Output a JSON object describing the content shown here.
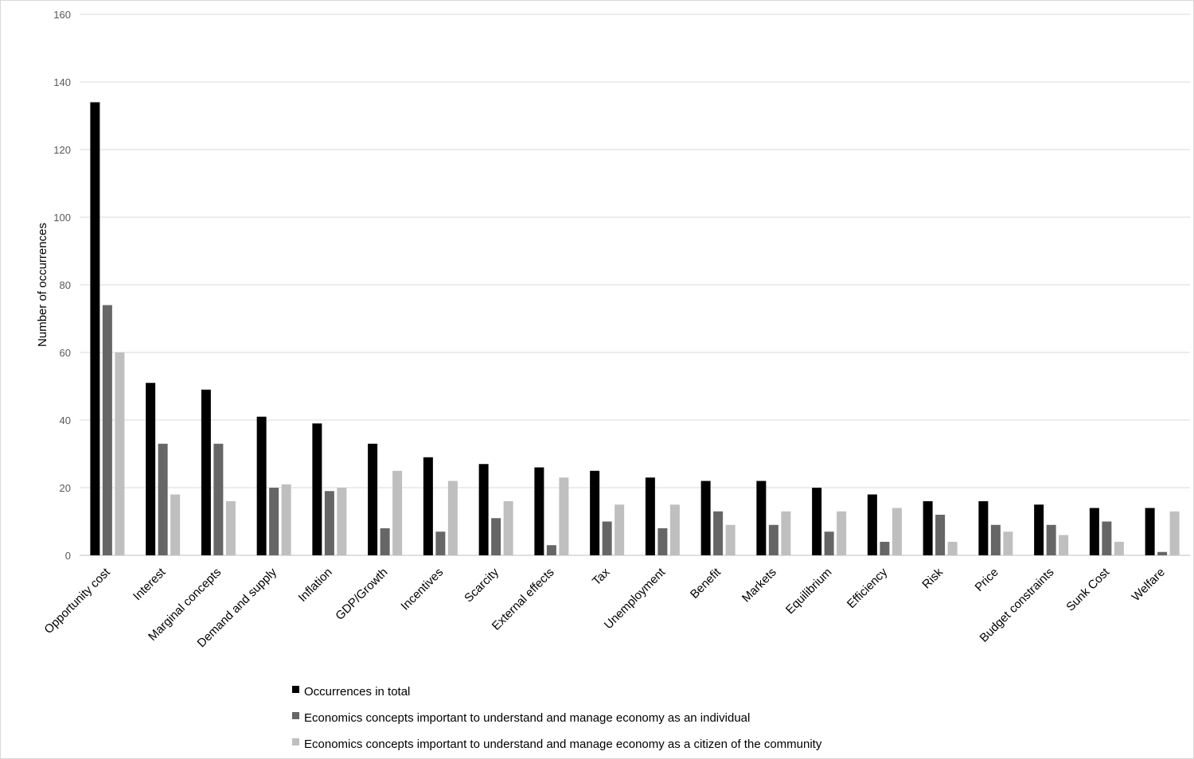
{
  "chart_data": {
    "type": "bar",
    "title": "",
    "xlabel": "",
    "ylabel": "Number of occurrences",
    "ylim": [
      0,
      160
    ],
    "yticks": [
      0,
      20,
      40,
      60,
      80,
      100,
      120,
      140,
      160
    ],
    "grid": true,
    "legend_position": "bottom",
    "categories": [
      "Opportunity cost",
      "Interest",
      "Marginal concepts",
      "Demand and supply",
      "Inflation",
      "GDP/Growth",
      "Incentives",
      "Scarcity",
      "External effects",
      "Tax",
      "Unemployment",
      "Benefit",
      "Markets",
      "Equilibrium",
      "Efficiency",
      "Risk",
      "Price",
      "Budget constraints",
      "Sunk Cost",
      "Welfare"
    ],
    "series": [
      {
        "name": "Occurrences in total",
        "color": "#000000",
        "values": [
          134,
          51,
          49,
          41,
          39,
          33,
          29,
          27,
          26,
          25,
          23,
          22,
          22,
          20,
          18,
          16,
          16,
          15,
          14,
          14
        ]
      },
      {
        "name": "Economics concepts important to understand and manage economy as an individual",
        "color": "#666666",
        "values": [
          74,
          33,
          33,
          20,
          19,
          8,
          7,
          11,
          3,
          10,
          8,
          13,
          9,
          7,
          4,
          12,
          9,
          9,
          10,
          1
        ]
      },
      {
        "name": "Economics concepts important  to understand and manage economy as a citizen of the community",
        "color": "#bfbfbf",
        "values": [
          60,
          18,
          16,
          21,
          20,
          25,
          22,
          16,
          23,
          15,
          15,
          9,
          13,
          13,
          14,
          4,
          7,
          6,
          4,
          13
        ]
      }
    ]
  }
}
